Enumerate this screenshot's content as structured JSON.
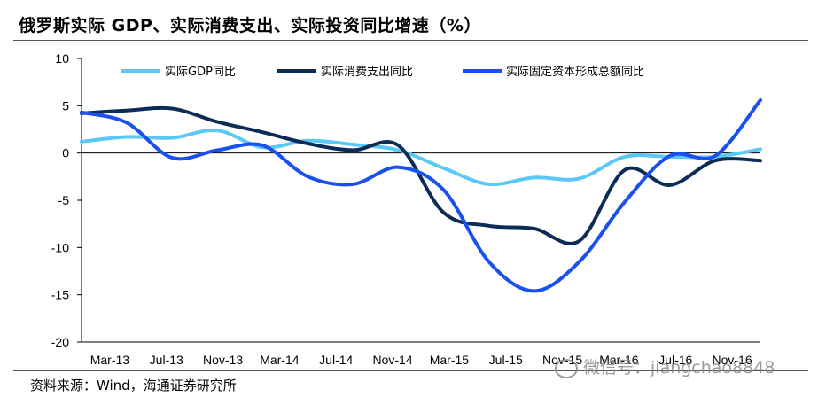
{
  "title": "俄罗斯实际 GDP、实际消费支出、实际投资同比增速（%）",
  "source": "资料来源：Wind，海通证券研究所",
  "watermark": "微信号：jiangchao8848",
  "chart_data": {
    "type": "line",
    "title": "",
    "xlabel": "",
    "ylabel": "",
    "ylim": [
      -20,
      10
    ],
    "yticks": [
      10,
      5,
      0,
      -5,
      -10,
      -15,
      -20
    ],
    "xlim": [
      0,
      15
    ],
    "xticks": [
      "Mar-13",
      "Jul-13",
      "Nov-13",
      "Mar-14",
      "Jul-14",
      "Nov-14",
      "Mar-15",
      "Jul-15",
      "Nov-15",
      "Mar-16",
      "Jul-16",
      "Nov-16"
    ],
    "legend_position": "top",
    "zero_line": true,
    "series": [
      {
        "name": "实际GDP同比",
        "color": "#5bc8f5",
        "x": [
          0,
          1,
          2,
          3,
          4,
          5,
          6,
          7,
          8,
          9,
          10,
          11,
          12,
          13,
          14,
          15
        ],
        "y": [
          1.2,
          1.7,
          1.6,
          2.4,
          0.6,
          1.3,
          0.9,
          0.3,
          -1.6,
          -3.3,
          -2.6,
          -2.7,
          -0.4,
          -0.4,
          -0.4,
          0.4
        ]
      },
      {
        "name": "实际消费支出同比",
        "color": "#0d2b57",
        "x": [
          0,
          1,
          2,
          3,
          4,
          5,
          6,
          7,
          8,
          9,
          10,
          11,
          12,
          13,
          14,
          15
        ],
        "y": [
          4.2,
          4.5,
          4.7,
          3.3,
          2.2,
          1.0,
          0.3,
          0.8,
          -6.3,
          -7.7,
          -8.0,
          -9.3,
          -1.8,
          -3.4,
          -0.8,
          -0.8
        ]
      },
      {
        "name": "实际固定资本形成总额同比",
        "color": "#1a4ff0",
        "x": [
          0,
          1,
          2,
          3,
          4,
          5,
          6,
          7,
          8,
          9,
          10,
          11,
          12,
          13,
          14,
          15
        ],
        "y": [
          4.3,
          3.2,
          -0.5,
          0.3,
          0.8,
          -2.5,
          -3.3,
          -1.5,
          -3.9,
          -11.5,
          -14.6,
          -11.5,
          -5.2,
          -0.3,
          -0.3,
          5.6
        ]
      }
    ]
  }
}
